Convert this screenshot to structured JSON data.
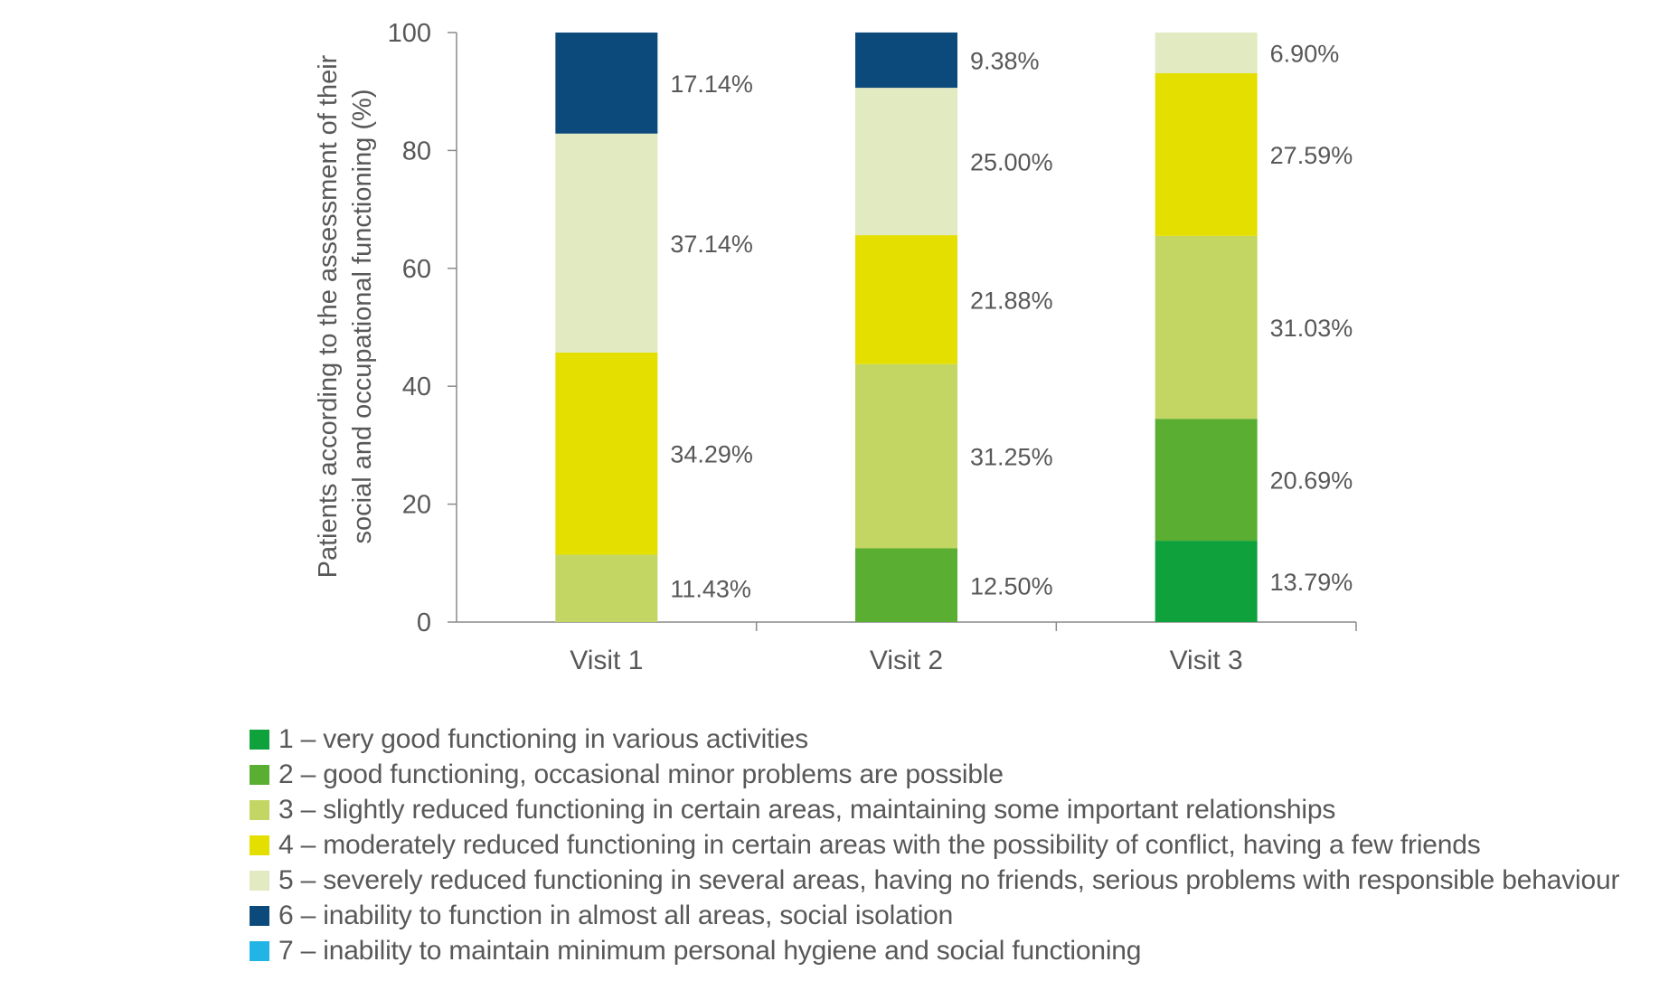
{
  "chart_data": {
    "type": "bar",
    "stacked": true,
    "title": "",
    "xlabel": "",
    "ylabel_lines": [
      "Patients according to the assessment of their",
      "social and occupational functioning (%)"
    ],
    "ylim": [
      0,
      100
    ],
    "yticks": [
      0,
      20,
      40,
      60,
      80,
      100
    ],
    "grid": false,
    "legend_position": "bottom",
    "categories": [
      "Visit 1",
      "Visit 2",
      "Visit 3"
    ],
    "series": [
      {
        "name": "1 – very good functioning in various activities",
        "color": "#0fa13c",
        "values": [
          0,
          0,
          13.79
        ],
        "labels": [
          "",
          "",
          "13.79%"
        ]
      },
      {
        "name": "2 – good functioning, occasional minor problems are possible",
        "color": "#5aae32",
        "values": [
          0,
          12.5,
          20.69
        ],
        "labels": [
          "",
          "12.50%",
          "20.69%"
        ]
      },
      {
        "name": "3 – slightly reduced functioning in certain areas, maintaining some important relationships",
        "color": "#c3d663",
        "values": [
          11.43,
          31.25,
          31.03
        ],
        "labels": [
          "11.43%",
          "31.25%",
          "31.03%"
        ]
      },
      {
        "name": "4 – moderately reduced functioning in certain areas with the possibility of conflict, having a few friends",
        "color": "#e5df00",
        "values": [
          34.29,
          21.88,
          27.59
        ],
        "labels": [
          "34.29%",
          "21.88%",
          "27.59%"
        ]
      },
      {
        "name": "5 – severely reduced functioning in several areas, having no friends, serious problems with responsible behaviour",
        "color": "#e1eac0",
        "values": [
          37.14,
          25.0,
          6.9
        ],
        "labels": [
          "37.14%",
          "25.00%",
          "6.90%"
        ]
      },
      {
        "name": "6 – inability to function in almost all areas, social isolation",
        "color": "#0d4a7c",
        "values": [
          17.14,
          9.38,
          0
        ],
        "labels": [
          "17.14%",
          "9.38%",
          ""
        ]
      },
      {
        "name": "7 – inability to maintain minimum personal hygiene and social functioning",
        "color": "#22b4e5",
        "values": [
          0,
          0,
          0
        ],
        "labels": [
          "",
          "",
          ""
        ]
      }
    ]
  }
}
